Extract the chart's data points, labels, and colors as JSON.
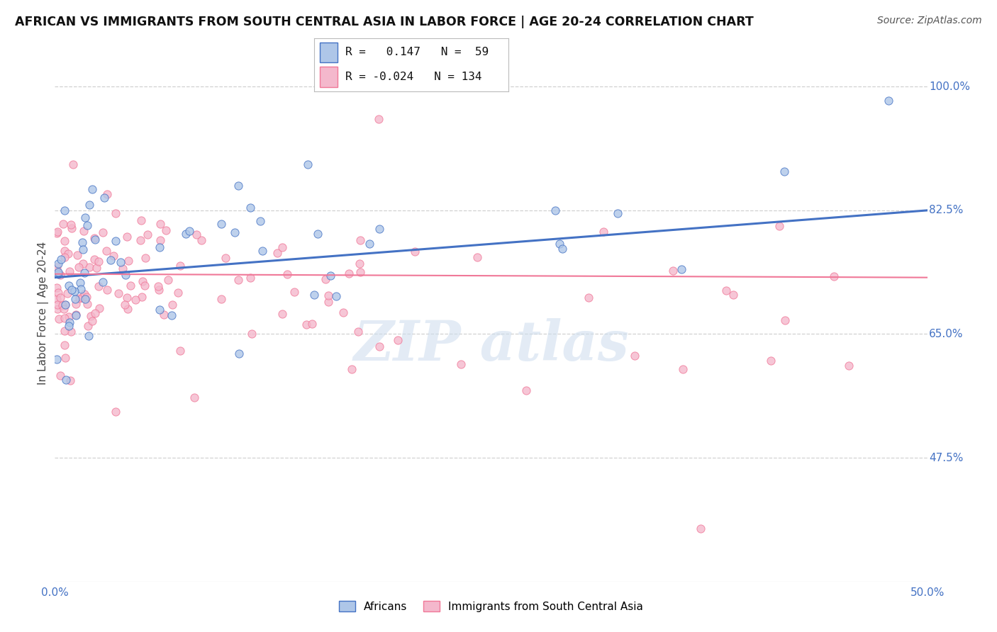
{
  "title": "AFRICAN VS IMMIGRANTS FROM SOUTH CENTRAL ASIA IN LABOR FORCE | AGE 20-24 CORRELATION CHART",
  "source": "Source: ZipAtlas.com",
  "ylabel": "In Labor Force | Age 20-24",
  "xlim": [
    0.0,
    0.5
  ],
  "ylim": [
    0.3,
    1.06
  ],
  "ytick_positions": [
    0.475,
    0.65,
    0.825,
    1.0
  ],
  "ytick_labels": [
    "47.5%",
    "65.0%",
    "82.5%",
    "100.0%"
  ],
  "grid_color": "#cccccc",
  "background_color": "#ffffff",
  "legend_R1": "0.147",
  "legend_N1": "59",
  "legend_R2": "-0.024",
  "legend_N2": "134",
  "series1_color": "#aec6e8",
  "series2_color": "#f4b8cc",
  "line1_color": "#4472c4",
  "line2_color": "#f07898",
  "label_color": "#4472c4",
  "watermark_color": "#ccdcee",
  "ax_line_color": "#aaaaaa",
  "trendline1_y0": 0.73,
  "trendline1_y1": 0.825,
  "trendline2_y0": 0.735,
  "trendline2_y1": 0.73
}
